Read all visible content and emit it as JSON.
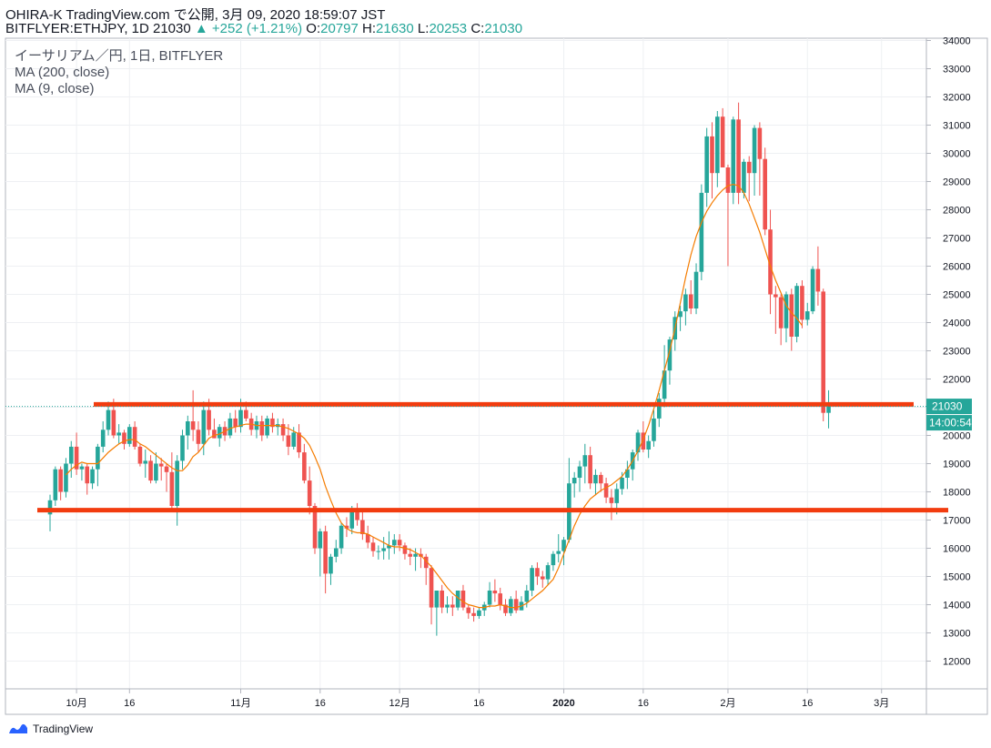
{
  "header": {
    "line1": "OHIRA-K TradingView.com で公開, 3月 09, 2020 18:59:07 JST",
    "symbol": "BITFLYER:ETHJPY, 1D 21030",
    "change": "▲ +252 (+1.21%)",
    "o_label": "O:",
    "o_value": "20797",
    "h_label": "H:",
    "h_value": "21630",
    "l_label": "L:",
    "l_value": "20253",
    "c_label": "C:",
    "c_value": "21030"
  },
  "legend": {
    "title": "イーサリアム／円, 1日, BITFLYER",
    "ma200": "MA (200, close)",
    "ma9": "MA (9, close)"
  },
  "price_badge": "21030",
  "countdown_badge": "14:00:54",
  "footer": {
    "brand": "TradingView"
  },
  "colors": {
    "up": "#26a69a",
    "down": "#ef5350",
    "ma": "#f57c00",
    "hline": "#f23c0f"
  },
  "chart_data": {
    "type": "candlestick",
    "title": "イーサリアム／円, 1日, BITFLYER",
    "yticks": [
      12000,
      13000,
      14000,
      15000,
      16000,
      17000,
      18000,
      19000,
      20000,
      21000,
      22000,
      23000,
      24000,
      25000,
      26000,
      27000,
      28000,
      29000,
      30000,
      31000,
      32000,
      33000,
      34000
    ],
    "xticks": [
      {
        "label": "10月",
        "i": 5
      },
      {
        "label": "16",
        "i": 15
      },
      {
        "label": "11月",
        "i": 36
      },
      {
        "label": "16",
        "i": 51
      },
      {
        "label": "12月",
        "i": 66
      },
      {
        "label": "16",
        "i": 81
      },
      {
        "label": "2020",
        "i": 97
      },
      {
        "label": "16",
        "i": 112
      },
      {
        "label": "2月",
        "i": 128
      },
      {
        "label": "16",
        "i": 143
      },
      {
        "label": "3月",
        "i": 157
      }
    ],
    "ylim": [
      11000,
      34300
    ],
    "current_price": 21030,
    "horizontal_lines": [
      {
        "from": 18230,
        "to": 19930,
        "value": 21100
      },
      {
        "from": 18156,
        "to": 19942,
        "value": 17350
      }
    ],
    "ohlc": [
      [
        17200,
        17900,
        16600,
        17700
      ],
      [
        17700,
        18900,
        17500,
        18800
      ],
      [
        18800,
        18900,
        17700,
        18000
      ],
      [
        18000,
        19200,
        17800,
        19000
      ],
      [
        19000,
        19800,
        18500,
        19600
      ],
      [
        19600,
        20100,
        18600,
        18800
      ],
      [
        18800,
        19000,
        18400,
        18900
      ],
      [
        18900,
        19000,
        17900,
        18300
      ],
      [
        18300,
        18900,
        18100,
        18800
      ],
      [
        18800,
        19700,
        18200,
        19600
      ],
      [
        19600,
        20500,
        19400,
        20200
      ],
      [
        20200,
        21200,
        20000,
        20900
      ],
      [
        20900,
        21300,
        19900,
        20000
      ],
      [
        20000,
        20400,
        19700,
        20100
      ],
      [
        20100,
        20200,
        19500,
        19700
      ],
      [
        19700,
        20400,
        19600,
        20300
      ],
      [
        20300,
        20500,
        19500,
        19600
      ],
      [
        19600,
        19700,
        18900,
        19000
      ],
      [
        19000,
        19500,
        18500,
        19100
      ],
      [
        19100,
        19300,
        18300,
        18400
      ],
      [
        18400,
        19400,
        18300,
        19000
      ],
      [
        19000,
        19200,
        18400,
        18900
      ],
      [
        18900,
        19000,
        18000,
        18700
      ],
      [
        18700,
        19400,
        17300,
        17500
      ],
      [
        17500,
        19300,
        16800,
        19100
      ],
      [
        19100,
        20200,
        18800,
        20000
      ],
      [
        20000,
        20700,
        19500,
        20500
      ],
      [
        20500,
        21600,
        19800,
        20200
      ],
      [
        20200,
        20500,
        19400,
        19700
      ],
      [
        19700,
        21200,
        19300,
        20900
      ],
      [
        20900,
        21300,
        20000,
        20200
      ],
      [
        20200,
        20600,
        19900,
        19900
      ],
      [
        19900,
        20400,
        19600,
        20300
      ],
      [
        20300,
        20500,
        19800,
        20000
      ],
      [
        20000,
        20800,
        19900,
        20600
      ],
      [
        20600,
        20900,
        20100,
        20300
      ],
      [
        20300,
        21300,
        20100,
        20900
      ],
      [
        20900,
        21200,
        20500,
        20600
      ],
      [
        20600,
        20800,
        20000,
        20200
      ],
      [
        20200,
        20700,
        19900,
        20500
      ],
      [
        20500,
        20700,
        19800,
        20000
      ],
      [
        20000,
        20700,
        19900,
        20600
      ],
      [
        20600,
        20800,
        20100,
        20300
      ],
      [
        20300,
        20600,
        20000,
        20400
      ],
      [
        20400,
        20600,
        19800,
        20000
      ],
      [
        20000,
        20400,
        19300,
        19600
      ],
      [
        19600,
        20300,
        19500,
        20100
      ],
      [
        20100,
        20400,
        19200,
        19400
      ],
      [
        19400,
        19700,
        18300,
        18400
      ],
      [
        18400,
        18900,
        17200,
        17500
      ],
      [
        17500,
        17600,
        15800,
        16000
      ],
      [
        16000,
        16700,
        15000,
        16600
      ],
      [
        16600,
        16800,
        14400,
        15100
      ],
      [
        15100,
        15800,
        14700,
        15700
      ],
      [
        15700,
        16300,
        15500,
        16000
      ],
      [
        16000,
        16900,
        15800,
        16800
      ],
      [
        16800,
        17100,
        16400,
        16700
      ],
      [
        16700,
        17500,
        16500,
        17300
      ],
      [
        17300,
        17600,
        16800,
        17000
      ],
      [
        17000,
        17300,
        16300,
        16500
      ],
      [
        16500,
        16800,
        16000,
        16200
      ],
      [
        16200,
        16400,
        15700,
        15900
      ],
      [
        15900,
        16100,
        15600,
        15900
      ],
      [
        15900,
        16400,
        15600,
        16000
      ],
      [
        16000,
        16600,
        15600,
        16100
      ],
      [
        16100,
        16500,
        15800,
        16300
      ],
      [
        16300,
        16500,
        15900,
        16100
      ],
      [
        16100,
        16200,
        15600,
        15800
      ],
      [
        15800,
        16000,
        15400,
        15700
      ],
      [
        15700,
        16000,
        15200,
        15800
      ],
      [
        15800,
        16000,
        15300,
        15700
      ],
      [
        15700,
        15800,
        14700,
        15300
      ],
      [
        15300,
        15400,
        13300,
        13900
      ],
      [
        13900,
        14500,
        12900,
        14500
      ],
      [
        14500,
        14700,
        13700,
        13900
      ],
      [
        13900,
        14300,
        13700,
        14000
      ],
      [
        14000,
        14300,
        13600,
        13900
      ],
      [
        13900,
        14500,
        13800,
        14500
      ],
      [
        14500,
        14700,
        13800,
        13900
      ],
      [
        13900,
        14000,
        13500,
        13700
      ],
      [
        13700,
        13900,
        13400,
        13600
      ],
      [
        13600,
        13900,
        13500,
        13800
      ],
      [
        13800,
        14100,
        13600,
        14000
      ],
      [
        14000,
        14800,
        13900,
        14500
      ],
      [
        14500,
        14900,
        14100,
        14400
      ],
      [
        14400,
        14600,
        13800,
        14000
      ],
      [
        14000,
        14200,
        13600,
        13700
      ],
      [
        13700,
        14300,
        13600,
        14200
      ],
      [
        14200,
        14500,
        13700,
        13800
      ],
      [
        13800,
        14300,
        13800,
        14100
      ],
      [
        14100,
        14700,
        13900,
        14500
      ],
      [
        14500,
        15400,
        14300,
        15300
      ],
      [
        15300,
        15500,
        14700,
        15000
      ],
      [
        15000,
        15200,
        14600,
        14900
      ],
      [
        14900,
        15500,
        14700,
        15400
      ],
      [
        15400,
        15900,
        15200,
        15800
      ],
      [
        15800,
        16500,
        15500,
        15900
      ],
      [
        15900,
        16400,
        15400,
        16300
      ],
      [
        16300,
        19200,
        16200,
        18300
      ],
      [
        18300,
        18700,
        17800,
        18500
      ],
      [
        18500,
        19100,
        18000,
        18900
      ],
      [
        18900,
        19700,
        18300,
        19300
      ],
      [
        19300,
        19600,
        18100,
        18300
      ],
      [
        18300,
        18800,
        17900,
        18600
      ],
      [
        18600,
        18700,
        18000,
        18300
      ],
      [
        18300,
        18500,
        17600,
        17800
      ],
      [
        17800,
        18100,
        17000,
        17600
      ],
      [
        17600,
        18300,
        17200,
        18100
      ],
      [
        18100,
        18700,
        17900,
        18500
      ],
      [
        18500,
        19100,
        18100,
        18800
      ],
      [
        18800,
        19500,
        18400,
        19400
      ],
      [
        19400,
        20200,
        19100,
        20100
      ],
      [
        20100,
        20500,
        19400,
        19500
      ],
      [
        19500,
        20000,
        19200,
        19800
      ],
      [
        19800,
        20900,
        19600,
        20600
      ],
      [
        20600,
        21500,
        20300,
        21300
      ],
      [
        21300,
        23200,
        21000,
        22300
      ],
      [
        22300,
        23500,
        21800,
        23400
      ],
      [
        23400,
        24400,
        23000,
        24200
      ],
      [
        24200,
        24600,
        23700,
        24400
      ],
      [
        24400,
        25200,
        23900,
        25000
      ],
      [
        25000,
        25500,
        24300,
        24500
      ],
      [
        24500,
        26100,
        24300,
        25800
      ],
      [
        25800,
        28900,
        25500,
        28600
      ],
      [
        28600,
        30900,
        28100,
        30600
      ],
      [
        30600,
        31100,
        28400,
        29300
      ],
      [
        29300,
        31500,
        28800,
        31300
      ],
      [
        31300,
        31600,
        29500,
        29500
      ],
      [
        29500,
        29600,
        26000,
        28600
      ],
      [
        28600,
        31300,
        28200,
        31200
      ],
      [
        31200,
        31800,
        28200,
        28600
      ],
      [
        28600,
        29800,
        28400,
        29700
      ],
      [
        29700,
        29900,
        28300,
        29300
      ],
      [
        29300,
        31000,
        28500,
        30900
      ],
      [
        30900,
        31100,
        28500,
        29800
      ],
      [
        29800,
        30200,
        27100,
        27300
      ],
      [
        27300,
        28000,
        24300,
        25000
      ],
      [
        25000,
        25300,
        23600,
        24900
      ],
      [
        24900,
        25000,
        23200,
        23800
      ],
      [
        23800,
        25100,
        23300,
        25000
      ],
      [
        25000,
        25200,
        23000,
        23500
      ],
      [
        23500,
        25400,
        23300,
        25300
      ],
      [
        25300,
        25500,
        23800,
        24100
      ],
      [
        24100,
        24700,
        23900,
        24400
      ],
      [
        24400,
        26000,
        24300,
        25900
      ],
      [
        25900,
        26700,
        24600,
        25100
      ],
      [
        25100,
        25200,
        20500,
        20800
      ],
      [
        20800,
        21600,
        20250,
        21030
      ]
    ],
    "ma9": [
      [
        3,
        18600
      ],
      [
        4,
        18800
      ],
      [
        5,
        18950
      ],
      [
        6,
        19050
      ],
      [
        7,
        19000
      ],
      [
        8,
        19000
      ],
      [
        9,
        19000
      ],
      [
        10,
        19200
      ],
      [
        11,
        19400
      ],
      [
        12,
        19550
      ],
      [
        13,
        19700
      ],
      [
        14,
        19800
      ],
      [
        15,
        19850
      ],
      [
        16,
        19850
      ],
      [
        17,
        19700
      ],
      [
        18,
        19600
      ],
      [
        19,
        19450
      ],
      [
        20,
        19300
      ],
      [
        21,
        19150
      ],
      [
        22,
        19000
      ],
      [
        23,
        18850
      ],
      [
        24,
        18750
      ],
      [
        25,
        18750
      ],
      [
        26,
        18950
      ],
      [
        27,
        19250
      ],
      [
        28,
        19400
      ],
      [
        29,
        19650
      ],
      [
        30,
        19900
      ],
      [
        31,
        20000
      ],
      [
        32,
        20050
      ],
      [
        33,
        20150
      ],
      [
        34,
        20250
      ],
      [
        35,
        20300
      ],
      [
        36,
        20350
      ],
      [
        37,
        20400
      ],
      [
        38,
        20400
      ],
      [
        39,
        20350
      ],
      [
        40,
        20350
      ],
      [
        41,
        20350
      ],
      [
        42,
        20350
      ],
      [
        43,
        20350
      ],
      [
        44,
        20300
      ],
      [
        45,
        20250
      ],
      [
        46,
        20150
      ],
      [
        47,
        20050
      ],
      [
        48,
        19900
      ],
      [
        49,
        19650
      ],
      [
        50,
        19250
      ],
      [
        51,
        18800
      ],
      [
        52,
        18200
      ],
      [
        53,
        17700
      ],
      [
        54,
        17250
      ],
      [
        55,
        16900
      ],
      [
        56,
        16700
      ],
      [
        57,
        16600
      ],
      [
        58,
        16550
      ],
      [
        59,
        16550
      ],
      [
        60,
        16500
      ],
      [
        61,
        16400
      ],
      [
        62,
        16300
      ],
      [
        63,
        16200
      ],
      [
        64,
        16100
      ],
      [
        65,
        16050
      ],
      [
        66,
        16050
      ],
      [
        67,
        16000
      ],
      [
        68,
        15950
      ],
      [
        69,
        15850
      ],
      [
        70,
        15750
      ],
      [
        71,
        15550
      ],
      [
        72,
        15350
      ],
      [
        73,
        15100
      ],
      [
        74,
        14850
      ],
      [
        75,
        14600
      ],
      [
        76,
        14400
      ],
      [
        77,
        14250
      ],
      [
        78,
        14100
      ],
      [
        79,
        14000
      ],
      [
        80,
        13950
      ],
      [
        81,
        13900
      ],
      [
        82,
        13900
      ],
      [
        83,
        13950
      ],
      [
        84,
        13950
      ],
      [
        85,
        14000
      ],
      [
        86,
        13950
      ],
      [
        87,
        13900
      ],
      [
        88,
        13900
      ],
      [
        89,
        13950
      ],
      [
        90,
        14050
      ],
      [
        91,
        14200
      ],
      [
        92,
        14350
      ],
      [
        93,
        14500
      ],
      [
        94,
        14700
      ],
      [
        95,
        14900
      ],
      [
        96,
        15300
      ],
      [
        97,
        15800
      ],
      [
        98,
        16300
      ],
      [
        99,
        16800
      ],
      [
        100,
        17200
      ],
      [
        101,
        17500
      ],
      [
        102,
        17750
      ],
      [
        103,
        17900
      ],
      [
        104,
        18050
      ],
      [
        105,
        18150
      ],
      [
        106,
        18250
      ],
      [
        107,
        18400
      ],
      [
        108,
        18550
      ],
      [
        109,
        18800
      ],
      [
        110,
        19100
      ],
      [
        111,
        19450
      ],
      [
        112,
        19850
      ],
      [
        113,
        20350
      ],
      [
        114,
        20950
      ],
      [
        115,
        21600
      ],
      [
        116,
        22300
      ],
      [
        117,
        23000
      ],
      [
        118,
        23800
      ],
      [
        119,
        24700
      ],
      [
        120,
        25600
      ],
      [
        121,
        26400
      ],
      [
        122,
        27050
      ],
      [
        123,
        27550
      ],
      [
        124,
        27950
      ],
      [
        125,
        28250
      ],
      [
        126,
        28500
      ],
      [
        127,
        28700
      ],
      [
        128,
        28850
      ],
      [
        129,
        28900
      ],
      [
        130,
        28850
      ],
      [
        131,
        28600
      ],
      [
        132,
        28200
      ],
      [
        133,
        27700
      ],
      [
        134,
        27200
      ],
      [
        135,
        26600
      ],
      [
        136,
        26000
      ],
      [
        137,
        25500
      ],
      [
        138,
        25050
      ],
      [
        139,
        24600
      ],
      [
        140,
        24350
      ],
      [
        141,
        24150
      ],
      [
        142,
        23900
      ]
    ]
  }
}
